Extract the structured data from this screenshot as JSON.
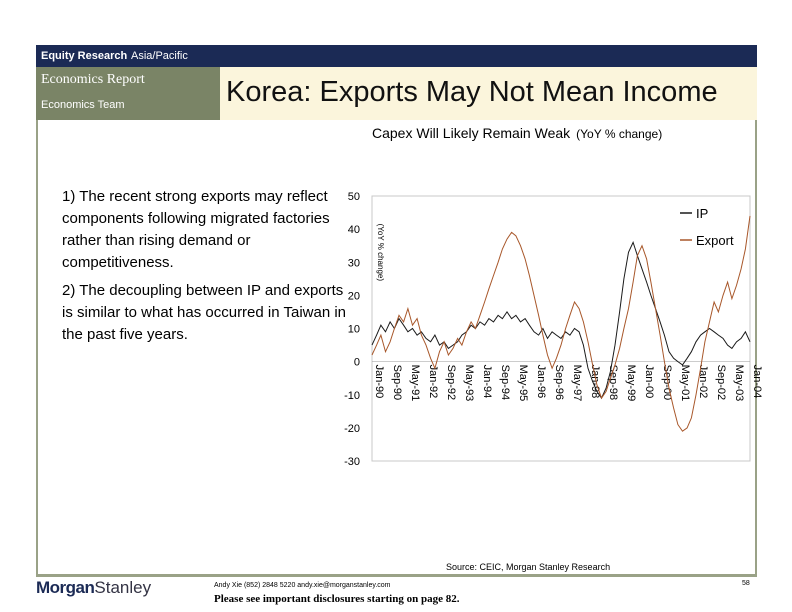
{
  "header": {
    "section": "Equity Research",
    "region": "Asia/Pacific",
    "report": "Economics Report",
    "team": "Economics Team",
    "title": "Korea: Exports May Not Mean Income"
  },
  "bullets": [
    "1) The recent strong exports may reflect components following migrated factories rather than rising demand or competitiveness.",
    "2) The decoupling between IP and exports is similar to what has occurred in Taiwan in the past five years."
  ],
  "chart_data": {
    "type": "line",
    "title": "Capex Will Likely Remain Weak",
    "unit": "(YoY % change)",
    "ylabel": "(YoY % change)",
    "ylim": [
      -30,
      50
    ],
    "yticks": [
      -30,
      -20,
      -10,
      0,
      10,
      20,
      30,
      40,
      50
    ],
    "xlim": [
      1990.0,
      2004.0
    ],
    "xticks": [
      {
        "label": "Jan-90",
        "x": 1990.0
      },
      {
        "label": "Sep-90",
        "x": 1990.67
      },
      {
        "label": "May-91",
        "x": 1991.33
      },
      {
        "label": "Jan-92",
        "x": 1992.0
      },
      {
        "label": "Sep-92",
        "x": 1992.67
      },
      {
        "label": "May-93",
        "x": 1993.33
      },
      {
        "label": "Jan-94",
        "x": 1994.0
      },
      {
        "label": "Sep-94",
        "x": 1994.67
      },
      {
        "label": "May-95",
        "x": 1995.33
      },
      {
        "label": "Jan-96",
        "x": 1996.0
      },
      {
        "label": "Sep-96",
        "x": 1996.67
      },
      {
        "label": "May-97",
        "x": 1997.33
      },
      {
        "label": "Jan-98",
        "x": 1998.0
      },
      {
        "label": "Sep-98",
        "x": 1998.67
      },
      {
        "label": "May-99",
        "x": 1999.33
      },
      {
        "label": "Jan-00",
        "x": 2000.0
      },
      {
        "label": "Sep-00",
        "x": 2000.67
      },
      {
        "label": "May-01",
        "x": 2001.33
      },
      {
        "label": "Jan-02",
        "x": 2002.0
      },
      {
        "label": "Sep-02",
        "x": 2002.67
      },
      {
        "label": "May-03",
        "x": 2003.33
      },
      {
        "label": "Jan-04",
        "x": 2004.0
      }
    ],
    "legend_position": "top-right",
    "series": [
      {
        "name": "IP",
        "color": "#1a1a1a",
        "points": [
          [
            1990.0,
            5
          ],
          [
            1990.17,
            8
          ],
          [
            1990.33,
            11
          ],
          [
            1990.5,
            9
          ],
          [
            1990.67,
            12
          ],
          [
            1990.83,
            10
          ],
          [
            1991.0,
            13
          ],
          [
            1991.17,
            11
          ],
          [
            1991.33,
            9
          ],
          [
            1991.5,
            10
          ],
          [
            1991.67,
            8
          ],
          [
            1991.83,
            9
          ],
          [
            1992.0,
            7
          ],
          [
            1992.17,
            6
          ],
          [
            1992.33,
            8
          ],
          [
            1992.5,
            5
          ],
          [
            1992.67,
            6
          ],
          [
            1992.83,
            4
          ],
          [
            1993.0,
            5
          ],
          [
            1993.17,
            6
          ],
          [
            1993.33,
            8
          ],
          [
            1993.5,
            9
          ],
          [
            1993.67,
            11
          ],
          [
            1993.83,
            10
          ],
          [
            1994.0,
            12
          ],
          [
            1994.17,
            11
          ],
          [
            1994.33,
            13
          ],
          [
            1994.5,
            12
          ],
          [
            1994.67,
            14
          ],
          [
            1994.83,
            13
          ],
          [
            1995.0,
            15
          ],
          [
            1995.17,
            13
          ],
          [
            1995.33,
            14
          ],
          [
            1995.5,
            12
          ],
          [
            1995.67,
            13
          ],
          [
            1995.83,
            11
          ],
          [
            1996.0,
            9
          ],
          [
            1996.17,
            8
          ],
          [
            1996.33,
            10
          ],
          [
            1996.5,
            7
          ],
          [
            1996.67,
            9
          ],
          [
            1996.83,
            8
          ],
          [
            1997.0,
            7
          ],
          [
            1997.17,
            9
          ],
          [
            1997.33,
            8
          ],
          [
            1997.5,
            10
          ],
          [
            1997.67,
            9
          ],
          [
            1997.83,
            5
          ],
          [
            1998.0,
            -2
          ],
          [
            1998.17,
            -6
          ],
          [
            1998.33,
            -9
          ],
          [
            1998.5,
            -11
          ],
          [
            1998.67,
            -8
          ],
          [
            1998.83,
            -3
          ],
          [
            1999.0,
            5
          ],
          [
            1999.17,
            15
          ],
          [
            1999.33,
            25
          ],
          [
            1999.5,
            33
          ],
          [
            1999.67,
            36
          ],
          [
            1999.83,
            32
          ],
          [
            2000.0,
            28
          ],
          [
            2000.17,
            24
          ],
          [
            2000.33,
            20
          ],
          [
            2000.5,
            16
          ],
          [
            2000.67,
            12
          ],
          [
            2000.83,
            8
          ],
          [
            2001.0,
            3
          ],
          [
            2001.17,
            1
          ],
          [
            2001.33,
            0
          ],
          [
            2001.5,
            -1
          ],
          [
            2001.67,
            1
          ],
          [
            2001.83,
            3
          ],
          [
            2002.0,
            6
          ],
          [
            2002.17,
            8
          ],
          [
            2002.33,
            9
          ],
          [
            2002.5,
            10
          ],
          [
            2002.67,
            9
          ],
          [
            2002.83,
            8
          ],
          [
            2003.0,
            7
          ],
          [
            2003.17,
            5
          ],
          [
            2003.33,
            4
          ],
          [
            2003.5,
            6
          ],
          [
            2003.67,
            7
          ],
          [
            2003.83,
            9
          ],
          [
            2004.0,
            6
          ]
        ]
      },
      {
        "name": "Export",
        "color": "#a8572a",
        "points": [
          [
            1990.0,
            2
          ],
          [
            1990.17,
            5
          ],
          [
            1990.33,
            8
          ],
          [
            1990.5,
            3
          ],
          [
            1990.67,
            6
          ],
          [
            1990.83,
            10
          ],
          [
            1991.0,
            14
          ],
          [
            1991.17,
            12
          ],
          [
            1991.33,
            16
          ],
          [
            1991.5,
            11
          ],
          [
            1991.67,
            13
          ],
          [
            1991.83,
            8
          ],
          [
            1992.0,
            5
          ],
          [
            1992.17,
            1
          ],
          [
            1992.33,
            -2
          ],
          [
            1992.5,
            3
          ],
          [
            1992.67,
            6
          ],
          [
            1992.83,
            2
          ],
          [
            1993.0,
            4
          ],
          [
            1993.17,
            7
          ],
          [
            1993.33,
            5
          ],
          [
            1993.5,
            9
          ],
          [
            1993.67,
            12
          ],
          [
            1993.83,
            10
          ],
          [
            1994.0,
            14
          ],
          [
            1994.17,
            18
          ],
          [
            1994.33,
            22
          ],
          [
            1994.5,
            26
          ],
          [
            1994.67,
            30
          ],
          [
            1994.83,
            34
          ],
          [
            1995.0,
            37
          ],
          [
            1995.17,
            39
          ],
          [
            1995.33,
            38
          ],
          [
            1995.5,
            35
          ],
          [
            1995.67,
            31
          ],
          [
            1995.83,
            26
          ],
          [
            1996.0,
            20
          ],
          [
            1996.17,
            14
          ],
          [
            1996.33,
            8
          ],
          [
            1996.5,
            2
          ],
          [
            1996.67,
            -2
          ],
          [
            1996.83,
            1
          ],
          [
            1997.0,
            5
          ],
          [
            1997.17,
            10
          ],
          [
            1997.33,
            14
          ],
          [
            1997.5,
            18
          ],
          [
            1997.67,
            16
          ],
          [
            1997.83,
            12
          ],
          [
            1998.0,
            6
          ],
          [
            1998.17,
            -1
          ],
          [
            1998.33,
            -7
          ],
          [
            1998.5,
            -11
          ],
          [
            1998.67,
            -9
          ],
          [
            1998.83,
            -5
          ],
          [
            1999.0,
            -1
          ],
          [
            1999.17,
            4
          ],
          [
            1999.33,
            10
          ],
          [
            1999.5,
            16
          ],
          [
            1999.67,
            24
          ],
          [
            1999.83,
            32
          ],
          [
            2000.0,
            35
          ],
          [
            2000.17,
            31
          ],
          [
            2000.33,
            24
          ],
          [
            2000.5,
            16
          ],
          [
            2000.67,
            8
          ],
          [
            2000.83,
            0
          ],
          [
            2001.0,
            -8
          ],
          [
            2001.17,
            -14
          ],
          [
            2001.33,
            -19
          ],
          [
            2001.5,
            -21
          ],
          [
            2001.67,
            -20
          ],
          [
            2001.83,
            -17
          ],
          [
            2002.0,
            -10
          ],
          [
            2002.17,
            -2
          ],
          [
            2002.33,
            6
          ],
          [
            2002.5,
            12
          ],
          [
            2002.67,
            18
          ],
          [
            2002.83,
            15
          ],
          [
            2003.0,
            20
          ],
          [
            2003.17,
            24
          ],
          [
            2003.33,
            19
          ],
          [
            2003.5,
            23
          ],
          [
            2003.67,
            28
          ],
          [
            2003.83,
            34
          ],
          [
            2004.0,
            44
          ]
        ]
      }
    ]
  },
  "source": "Source: CEIC, Morgan Stanley Research",
  "footer": {
    "logo_bold": "Morgan",
    "logo_light": "Stanley",
    "contact": "Andy Xie (852) 2848 5220 andy.xie@morganstanley.com",
    "disclosure": "Please see important disclosures starting on page 82.",
    "page": "58"
  }
}
